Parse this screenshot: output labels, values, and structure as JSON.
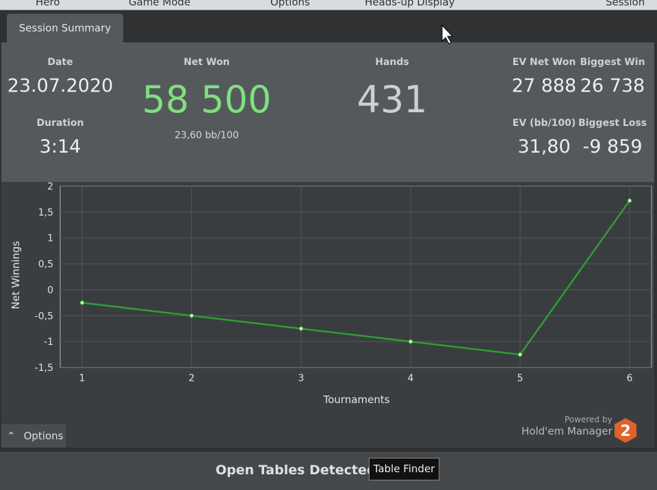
{
  "menu": [
    "Hero",
    "Game Mode",
    "Options",
    "Heads-up Display",
    "Session"
  ],
  "tab": "Session Summary",
  "stats": {
    "date": {
      "label": "Date",
      "value": "23.07.2020"
    },
    "duration": {
      "label": "Duration",
      "value": "3:14"
    },
    "net_won": {
      "label": "Net Won",
      "value": "58 500",
      "sub": "23,60 bb/100"
    },
    "hands": {
      "label": "Hands",
      "value": "431"
    },
    "ev_net_won": {
      "label": "EV Net Won",
      "value": "27 888"
    },
    "biggest_win": {
      "label": "Biggest Win",
      "value": "26 738"
    },
    "ev_bb": {
      "label": "EV (bb/100)",
      "value": "31,80"
    },
    "biggest_loss": {
      "label": "Biggest Loss",
      "value": "-9 859"
    }
  },
  "chart_data": {
    "type": "line",
    "x_label": "Tournaments",
    "y_label": "Net Winnings",
    "x": [
      1,
      2,
      3,
      4,
      5,
      6
    ],
    "values": [
      -0.25,
      -0.5,
      -0.75,
      -1,
      -1.25,
      1.72
    ],
    "color": "#2ea02e",
    "xlim": [
      0.8,
      6.2
    ],
    "xticks": [
      1,
      2,
      3,
      4,
      5,
      6
    ],
    "ylim": [
      -1.5,
      2
    ],
    "yticks": [
      {
        "value": -1.5,
        "label": "-1,5"
      },
      -1,
      {
        "value": -0.5,
        "label": "-0,5"
      },
      0,
      {
        "value": 0.5,
        "label": "0,5"
      },
      1,
      {
        "value": 1.5,
        "label": "1,5"
      },
      2
    ],
    "grid": true
  },
  "options": "Options",
  "branding": {
    "powered": "Powered by",
    "product": "Hold'em Manager",
    "version": "2"
  },
  "footer": {
    "text": "Open Tables Detected",
    "button": "Table Finder"
  }
}
